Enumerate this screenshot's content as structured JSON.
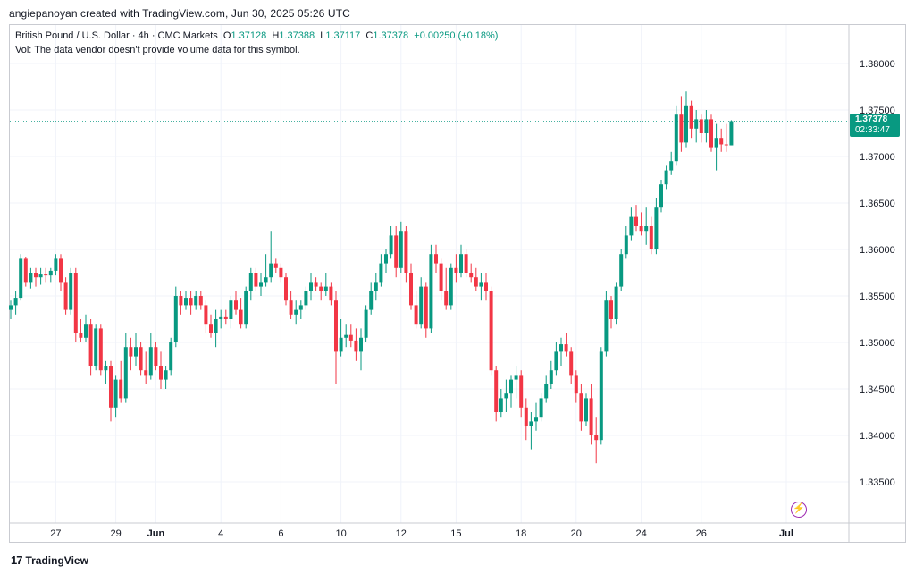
{
  "caption": "angiepanoyan created with TradingView.com, Jun 30, 2025 05:26 UTC",
  "legend": {
    "symbol": "British Pound / U.S. Dollar · 4h · CMC Markets",
    "o_key": "O",
    "o_val": "1.37128",
    "h_key": "H",
    "h_val": "1.37388",
    "l_key": "L",
    "l_val": "1.37117",
    "c_key": "C",
    "c_val": "1.37378",
    "change": "+0.00250 (+0.18%)",
    "vol_note": "Vol: The data vendor doesn't provide volume data for this symbol."
  },
  "price_badge": {
    "price": "1.37378",
    "countdown": "02:33:47"
  },
  "footer": {
    "brand": "TradingView",
    "mark": "17"
  },
  "icons": {
    "flash": "lightning-icon"
  },
  "colors": {
    "up": "#089981",
    "down": "#f23645",
    "grid": "#f0f3fa",
    "axis_text": "#131722"
  },
  "chart_data": {
    "type": "candlestick",
    "ylim": [
      1.3325,
      1.3825
    ],
    "y_ticks": [
      "1.38000",
      "1.37500",
      "1.37000",
      "1.36500",
      "1.36000",
      "1.35500",
      "1.35000",
      "1.34500",
      "1.34000",
      "1.33500"
    ],
    "y_tick_values": [
      1.38,
      1.375,
      1.37,
      1.365,
      1.36,
      1.355,
      1.35,
      1.345,
      1.34,
      1.335
    ],
    "x_ticks": [
      {
        "label": "27",
        "bar": 9
      },
      {
        "label": "29",
        "bar": 21
      },
      {
        "label": "Jun",
        "bar": 29
      },
      {
        "label": "4",
        "bar": 42
      },
      {
        "label": "6",
        "bar": 54
      },
      {
        "label": "10",
        "bar": 66
      },
      {
        "label": "12",
        "bar": 78
      },
      {
        "label": "15",
        "bar": 89
      },
      {
        "label": "18",
        "bar": 102
      },
      {
        "label": "20",
        "bar": 113
      },
      {
        "label": "24",
        "bar": 126
      },
      {
        "label": "26",
        "bar": 138
      },
      {
        "label": "Jul",
        "bar": 155
      }
    ],
    "last_price": 1.37378,
    "candles": [
      [
        1.3535,
        1.3545,
        1.3525,
        1.354
      ],
      [
        1.354,
        1.3555,
        1.353,
        1.3548
      ],
      [
        1.3548,
        1.3595,
        1.3545,
        1.359
      ],
      [
        1.359,
        1.3592,
        1.356,
        1.3565
      ],
      [
        1.3565,
        1.358,
        1.3558,
        1.3575
      ],
      [
        1.3575,
        1.358,
        1.356,
        1.357
      ],
      [
        1.357,
        1.358,
        1.3562,
        1.3573
      ],
      [
        1.3573,
        1.358,
        1.3565,
        1.3572
      ],
      [
        1.3572,
        1.358,
        1.3565,
        1.3577
      ],
      [
        1.3577,
        1.3595,
        1.3572,
        1.359
      ],
      [
        1.359,
        1.3595,
        1.3555,
        1.3565
      ],
      [
        1.3565,
        1.357,
        1.353,
        1.3535
      ],
      [
        1.3535,
        1.358,
        1.353,
        1.3575
      ],
      [
        1.3575,
        1.358,
        1.35,
        1.351
      ],
      [
        1.351,
        1.3525,
        1.35,
        1.3505
      ],
      [
        1.3505,
        1.353,
        1.35,
        1.352
      ],
      [
        1.352,
        1.3525,
        1.3465,
        1.3475
      ],
      [
        1.3475,
        1.352,
        1.347,
        1.3515
      ],
      [
        1.3515,
        1.352,
        1.3465,
        1.347
      ],
      [
        1.347,
        1.348,
        1.3455,
        1.3475
      ],
      [
        1.3475,
        1.348,
        1.3415,
        1.343
      ],
      [
        1.343,
        1.3465,
        1.342,
        1.346
      ],
      [
        1.346,
        1.348,
        1.3435,
        1.344
      ],
      [
        1.344,
        1.351,
        1.3435,
        1.3495
      ],
      [
        1.3495,
        1.3505,
        1.347,
        1.3485
      ],
      [
        1.3485,
        1.351,
        1.3475,
        1.3495
      ],
      [
        1.3495,
        1.35,
        1.3465,
        1.347
      ],
      [
        1.347,
        1.349,
        1.3455,
        1.3465
      ],
      [
        1.3465,
        1.351,
        1.346,
        1.3495
      ],
      [
        1.3495,
        1.35,
        1.347,
        1.3475
      ],
      [
        1.3475,
        1.349,
        1.345,
        1.346
      ],
      [
        1.346,
        1.3475,
        1.345,
        1.347
      ],
      [
        1.347,
        1.3505,
        1.3465,
        1.35
      ],
      [
        1.35,
        1.356,
        1.3495,
        1.355
      ],
      [
        1.355,
        1.3555,
        1.353,
        1.354
      ],
      [
        1.354,
        1.3555,
        1.3535,
        1.3548
      ],
      [
        1.3548,
        1.3555,
        1.353,
        1.354
      ],
      [
        1.354,
        1.3555,
        1.3535,
        1.355
      ],
      [
        1.355,
        1.3555,
        1.3535,
        1.354
      ],
      [
        1.354,
        1.3545,
        1.351,
        1.352
      ],
      [
        1.352,
        1.353,
        1.3505,
        1.351
      ],
      [
        1.351,
        1.3535,
        1.3495,
        1.3525
      ],
      [
        1.3525,
        1.3535,
        1.3515,
        1.3528
      ],
      [
        1.3528,
        1.3535,
        1.352,
        1.3525
      ],
      [
        1.3525,
        1.355,
        1.3515,
        1.3545
      ],
      [
        1.3545,
        1.3555,
        1.353,
        1.3535
      ],
      [
        1.3535,
        1.3548,
        1.3515,
        1.352
      ],
      [
        1.352,
        1.356,
        1.3515,
        1.3555
      ],
      [
        1.3555,
        1.358,
        1.3545,
        1.3575
      ],
      [
        1.3575,
        1.358,
        1.3555,
        1.356
      ],
      [
        1.356,
        1.3575,
        1.355,
        1.3565
      ],
      [
        1.3565,
        1.3595,
        1.356,
        1.357
      ],
      [
        1.357,
        1.362,
        1.3565,
        1.3585
      ],
      [
        1.3585,
        1.359,
        1.3575,
        1.358
      ],
      [
        1.358,
        1.3585,
        1.3565,
        1.357
      ],
      [
        1.357,
        1.3575,
        1.354,
        1.3545
      ],
      [
        1.3545,
        1.3555,
        1.3525,
        1.353
      ],
      [
        1.353,
        1.3545,
        1.352,
        1.3535
      ],
      [
        1.3535,
        1.3545,
        1.3525,
        1.354
      ],
      [
        1.354,
        1.356,
        1.3535,
        1.3555
      ],
      [
        1.3555,
        1.3575,
        1.3545,
        1.3565
      ],
      [
        1.3565,
        1.357,
        1.3555,
        1.356
      ],
      [
        1.356,
        1.3565,
        1.3545,
        1.3555
      ],
      [
        1.3555,
        1.3575,
        1.355,
        1.356
      ],
      [
        1.356,
        1.3565,
        1.354,
        1.3545
      ],
      [
        1.3545,
        1.3555,
        1.3455,
        1.349
      ],
      [
        1.349,
        1.3525,
        1.3485,
        1.3505
      ],
      [
        1.3505,
        1.352,
        1.3495,
        1.3508
      ],
      [
        1.3508,
        1.352,
        1.3495,
        1.3502
      ],
      [
        1.3502,
        1.3515,
        1.348,
        1.349
      ],
      [
        1.349,
        1.3515,
        1.347,
        1.3505
      ],
      [
        1.3505,
        1.354,
        1.35,
        1.3535
      ],
      [
        1.3535,
        1.3565,
        1.353,
        1.3555
      ],
      [
        1.3555,
        1.3575,
        1.3545,
        1.3565
      ],
      [
        1.3565,
        1.3595,
        1.356,
        1.3585
      ],
      [
        1.3585,
        1.36,
        1.3575,
        1.3595
      ],
      [
        1.3595,
        1.3625,
        1.359,
        1.3615
      ],
      [
        1.3615,
        1.3625,
        1.357,
        1.358
      ],
      [
        1.358,
        1.363,
        1.3575,
        1.362
      ],
      [
        1.362,
        1.3625,
        1.3565,
        1.3575
      ],
      [
        1.3575,
        1.3585,
        1.3535,
        1.354
      ],
      [
        1.354,
        1.3555,
        1.3515,
        1.352
      ],
      [
        1.352,
        1.357,
        1.3515,
        1.356
      ],
      [
        1.356,
        1.3565,
        1.3505,
        1.3515
      ],
      [
        1.3515,
        1.3605,
        1.351,
        1.3595
      ],
      [
        1.3595,
        1.3605,
        1.3575,
        1.3585
      ],
      [
        1.3585,
        1.359,
        1.3545,
        1.3555
      ],
      [
        1.3555,
        1.358,
        1.3535,
        1.354
      ],
      [
        1.354,
        1.3585,
        1.3535,
        1.358
      ],
      [
        1.358,
        1.3595,
        1.3565,
        1.3575
      ],
      [
        1.3575,
        1.3605,
        1.357,
        1.3595
      ],
      [
        1.3595,
        1.36,
        1.357,
        1.3575
      ],
      [
        1.3575,
        1.3585,
        1.3565,
        1.357
      ],
      [
        1.357,
        1.358,
        1.3555,
        1.356
      ],
      [
        1.356,
        1.3575,
        1.3545,
        1.3565
      ],
      [
        1.3565,
        1.3575,
        1.3545,
        1.3555
      ],
      [
        1.3555,
        1.356,
        1.3465,
        1.347
      ],
      [
        1.347,
        1.3475,
        1.3415,
        1.3425
      ],
      [
        1.3425,
        1.345,
        1.342,
        1.344
      ],
      [
        1.344,
        1.346,
        1.3425,
        1.3445
      ],
      [
        1.3445,
        1.3465,
        1.343,
        1.346
      ],
      [
        1.346,
        1.3475,
        1.344,
        1.3465
      ],
      [
        1.3465,
        1.347,
        1.342,
        1.343
      ],
      [
        1.343,
        1.344,
        1.3395,
        1.341
      ],
      [
        1.341,
        1.3425,
        1.3385,
        1.3415
      ],
      [
        1.3415,
        1.3435,
        1.3405,
        1.342
      ],
      [
        1.342,
        1.3445,
        1.3415,
        1.344
      ],
      [
        1.344,
        1.3465,
        1.3435,
        1.3455
      ],
      [
        1.3455,
        1.348,
        1.345,
        1.347
      ],
      [
        1.347,
        1.35,
        1.3465,
        1.349
      ],
      [
        1.349,
        1.3505,
        1.3475,
        1.3498
      ],
      [
        1.3498,
        1.351,
        1.3485,
        1.349
      ],
      [
        1.349,
        1.3495,
        1.3455,
        1.3465
      ],
      [
        1.3465,
        1.347,
        1.3435,
        1.3445
      ],
      [
        1.3445,
        1.3455,
        1.3405,
        1.3415
      ],
      [
        1.3415,
        1.3445,
        1.341,
        1.344
      ],
      [
        1.344,
        1.3455,
        1.339,
        1.34
      ],
      [
        1.34,
        1.342,
        1.337,
        1.3395
      ],
      [
        1.3395,
        1.3495,
        1.339,
        1.349
      ],
      [
        1.349,
        1.3555,
        1.3485,
        1.3545
      ],
      [
        1.3545,
        1.355,
        1.3515,
        1.3525
      ],
      [
        1.3525,
        1.3565,
        1.352,
        1.356
      ],
      [
        1.356,
        1.36,
        1.3555,
        1.3595
      ],
      [
        1.3595,
        1.3625,
        1.359,
        1.3615
      ],
      [
        1.3615,
        1.3645,
        1.361,
        1.3635
      ],
      [
        1.3635,
        1.3648,
        1.362,
        1.3625
      ],
      [
        1.3625,
        1.364,
        1.3615,
        1.362
      ],
      [
        1.362,
        1.3645,
        1.3605,
        1.3625
      ],
      [
        1.3625,
        1.3635,
        1.3595,
        1.36
      ],
      [
        1.36,
        1.3655,
        1.3595,
        1.3645
      ],
      [
        1.3645,
        1.3675,
        1.364,
        1.367
      ],
      [
        1.367,
        1.369,
        1.3665,
        1.3685
      ],
      [
        1.3685,
        1.3705,
        1.368,
        1.3695
      ],
      [
        1.3695,
        1.3755,
        1.369,
        1.3745
      ],
      [
        1.3745,
        1.3765,
        1.3705,
        1.3715
      ],
      [
        1.3715,
        1.377,
        1.371,
        1.3755
      ],
      [
        1.3755,
        1.376,
        1.372,
        1.373
      ],
      [
        1.373,
        1.375,
        1.3715,
        1.374
      ],
      [
        1.374,
        1.3745,
        1.3715,
        1.3725
      ],
      [
        1.3725,
        1.375,
        1.3715,
        1.374
      ],
      [
        1.374,
        1.3745,
        1.3705,
        1.371
      ],
      [
        1.371,
        1.3735,
        1.3685,
        1.372
      ],
      [
        1.372,
        1.373,
        1.3705,
        1.3713
      ],
      [
        1.3713,
        1.3735,
        1.3705,
        1.3712
      ],
      [
        1.3712,
        1.3739,
        1.3712,
        1.3738
      ]
    ]
  }
}
